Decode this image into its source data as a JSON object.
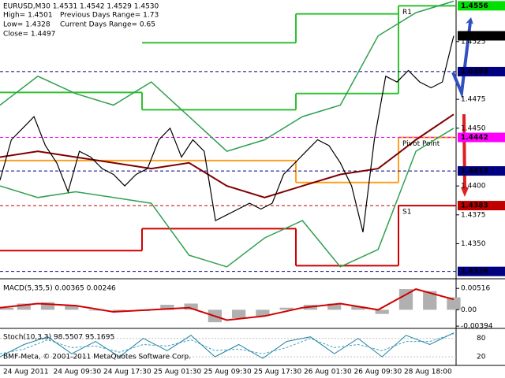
{
  "header": {
    "lines": [
      "EURUSD,M30  1.4531 1.4542 1.4529 1.4530",
      "High= 1.4501",
      "Previous Days Range= 1.73",
      "Low= 1.4328",
      "Current Days Range= 0.65",
      "Close= 1.4497"
    ]
  },
  "price_pane": {
    "ylim": [
      1.4321,
      1.4561
    ],
    "ticks": [
      {
        "value": 1.4525,
        "label": "1.4525"
      },
      {
        "value": 1.4475,
        "label": "1.4475"
      },
      {
        "value": 1.445,
        "label": "1.4450"
      },
      {
        "value": 1.44,
        "label": "1.4400"
      },
      {
        "value": 1.4375,
        "label": "1.4375"
      },
      {
        "value": 1.435,
        "label": "1.4350"
      }
    ],
    "markers": [
      {
        "value": 1.4556,
        "label": "1.4556",
        "color": "#00e000",
        "text_color": "#000000",
        "line": false
      },
      {
        "value": 1.453,
        "label": "1.4530",
        "color": "#000000",
        "text_color": "#ffffff",
        "line": false
      },
      {
        "value": 1.4499,
        "label": "1.4499",
        "color": "#000080",
        "text_color": "#ffffff",
        "line": true
      },
      {
        "value": 1.4442,
        "label": "1.4442",
        "color": "#ff00ff",
        "text_color": "#ffffff",
        "line": true
      },
      {
        "value": 1.4413,
        "label": "1.4413",
        "color": "#000080",
        "text_color": "#ffffff",
        "line": true
      },
      {
        "value": 1.4383,
        "label": "1.4383",
        "color": "#c00000",
        "text_color": "#ffffff",
        "line": true
      },
      {
        "value": 1.4326,
        "label": "1.4326",
        "color": "#000080",
        "text_color": "#ffffff",
        "line": true
      }
    ],
    "close": [
      1.4405,
      1.444,
      1.445,
      1.446,
      1.4435,
      1.442,
      1.4395,
      1.443,
      1.4425,
      1.4415,
      1.441,
      1.44,
      1.441,
      1.4415,
      1.444,
      1.445,
      1.4425,
      1.444,
      1.443,
      1.437,
      1.4375,
      1.438,
      1.4385,
      1.438,
      1.4385,
      1.441,
      1.442,
      1.443,
      1.444,
      1.4435,
      1.442,
      1.44,
      1.436,
      1.444,
      1.4495,
      1.449,
      1.45,
      1.449,
      1.4485,
      1.449,
      1.453
    ],
    "ma": [
      1.4425,
      1.443,
      1.4425,
      1.442,
      1.4415,
      1.442,
      1.44,
      1.439,
      1.44,
      1.441,
      1.4415,
      1.444,
      1.4462
    ],
    "upper_band": [
      1.447,
      1.4495,
      1.448,
      1.447,
      1.449,
      1.446,
      1.443,
      1.444,
      1.446,
      1.447,
      1.453,
      1.455,
      1.456
    ],
    "lower_band": [
      1.44,
      1.439,
      1.4395,
      1.439,
      1.4385,
      1.434,
      1.433,
      1.4355,
      1.437,
      1.433,
      1.4345,
      1.443,
      1.445
    ],
    "levels": [
      {
        "values": [
          null,
          1.4524,
          1.4549,
          null
        ],
        "color": "#30c030"
      },
      {
        "name": "R1",
        "values": [
          1.4481,
          1.4466,
          1.448,
          1.4556
        ],
        "color": "#30c030"
      },
      {
        "name": "Pivot Point",
        "values": [
          1.4422,
          1.4422,
          1.4403,
          1.4442
        ],
        "color": "#ffa020"
      },
      {
        "name": "S1",
        "values": [
          1.4344,
          1.4363,
          1.4331,
          1.4383
        ],
        "color": "#d00000"
      }
    ]
  },
  "macd_pane": {
    "label": "MACD(5,35,5) 0.00365 0.00246",
    "ylim": [
      -0.0043,
      0.0071
    ],
    "ticks": [
      {
        "value": 0.00516,
        "label": "0.00516"
      },
      {
        "value": 0,
        "label": "0.00"
      },
      {
        "value": -0.00394,
        "label": "-0.00394"
      }
    ],
    "histogram": [
      0.0005,
      0.0015,
      0.0018,
      0.001,
      -0.0002,
      -0.0005,
      -0.0003,
      0.0012,
      0.0015,
      -0.003,
      -0.002,
      -0.0015,
      0.0005,
      0.0012,
      0.0015,
      0.0008,
      -0.001,
      0.005,
      0.0045,
      0.003
    ],
    "signal": [
      0.0005,
      0.0015,
      0.001,
      -0.0005,
      0,
      0.0005,
      -0.0025,
      -0.0015,
      0.0005,
      0.0015,
      0,
      0.005,
      0.0025
    ]
  },
  "stoch_pane": {
    "label": "Stoch(10,3,3) 98.5507 95.1695",
    "ylim": [
      -8,
      110
    ],
    "ticks": [
      80,
      20
    ],
    "main": [
      20,
      60,
      85,
      30,
      70,
      20,
      80,
      40,
      90,
      20,
      60,
      15,
      70,
      85,
      30,
      80,
      20,
      90,
      60,
      98
    ],
    "signal": [
      30,
      45,
      75,
      50,
      55,
      35,
      60,
      55,
      75,
      40,
      45,
      30,
      50,
      80,
      50,
      60,
      40,
      70,
      70,
      95
    ]
  },
  "footer": "BMF-Meta, © 2001-2011 MetaQuotes Software Corp.",
  "time_axis": [
    "24 Aug 2011",
    "24 Aug 09:30",
    "24 Aug 17:30",
    "25 Aug 01:30",
    "25 Aug 09:30",
    "25 Aug 17:30",
    "26 Aug 01:30",
    "26 Aug 09:30",
    "28 Aug 18:00"
  ]
}
